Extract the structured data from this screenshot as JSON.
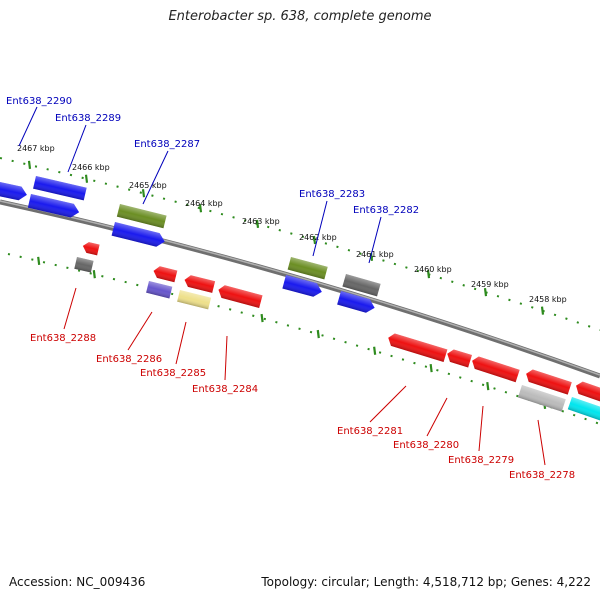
{
  "title": "Enterobacter sp. 638, complete genome",
  "footer": {
    "accession": "Accession: NC_009436",
    "summary": "Topology: circular; Length: 4,518,712 bp; Genes: 4,222"
  },
  "colors": {
    "backbone": "#888888",
    "ticks": "#2e8b1e",
    "label_forward": "#0000bb",
    "label_reverse": "#cc0000",
    "blue": "#1a1aee",
    "red": "#ee1111",
    "olive": "#6b8e23",
    "gray": "#666666",
    "purple": "#6655cc",
    "khaki": "#eee08a",
    "silver": "#bbbbbb",
    "cyan": "#00e5ee"
  },
  "scale_labels": [
    "2467 kbp",
    "2466 kbp",
    "2465 kbp",
    "2464 kbp",
    "2463 kbp",
    "2462 kbp",
    "2461 kbp",
    "2460 kbp",
    "2459 kbp",
    "2458 kbp"
  ],
  "forward_labels": [
    "Ent638_2290",
    "Ent638_2289",
    "Ent638_2287",
    "Ent638_2283",
    "Ent638_2282"
  ],
  "reverse_labels": [
    "Ent638_2288",
    "Ent638_2286",
    "Ent638_2285",
    "Ent638_2284",
    "Ent638_2281",
    "Ent638_2280",
    "Ent638_2279",
    "Ent638_2278"
  ]
}
